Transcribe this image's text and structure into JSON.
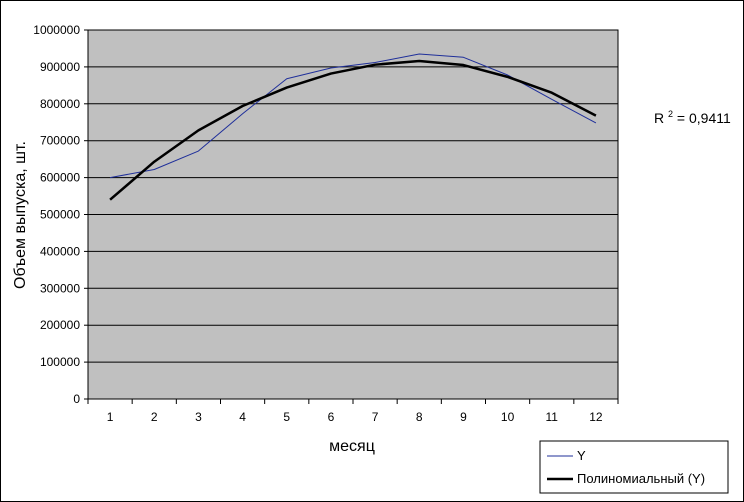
{
  "chart_data": {
    "type": "line",
    "title": "",
    "xlabel": "месяц",
    "ylabel": "Объем выпуска, шт.",
    "categories": [
      "1",
      "2",
      "3",
      "4",
      "5",
      "6",
      "7",
      "8",
      "9",
      "10",
      "11",
      "12"
    ],
    "ylim": [
      0,
      1000000
    ],
    "y_ticks": [
      "0",
      "100000",
      "200000",
      "300000",
      "400000",
      "500000",
      "600000",
      "700000",
      "800000",
      "900000",
      "1000000"
    ],
    "grid": true,
    "legend_position": "bottom-right",
    "series": [
      {
        "name": "Y",
        "color": "#1f2f9a",
        "values": [
          600000,
          622000,
          672000,
          773000,
          868000,
          897000,
          912000,
          935000,
          926000,
          878000,
          812000,
          748000
        ]
      },
      {
        "name": "Полиномиальный (Y)",
        "color": "#000000",
        "trend": "polynomial",
        "values": [
          540000,
          643000,
          728000,
          794000,
          844000,
          882000,
          906000,
          916000,
          905000,
          873000,
          830000,
          768000
        ]
      }
    ],
    "annotation": {
      "r2_label": "R",
      "r2_exp": "2",
      "r2_value": " = 0,9411"
    }
  }
}
